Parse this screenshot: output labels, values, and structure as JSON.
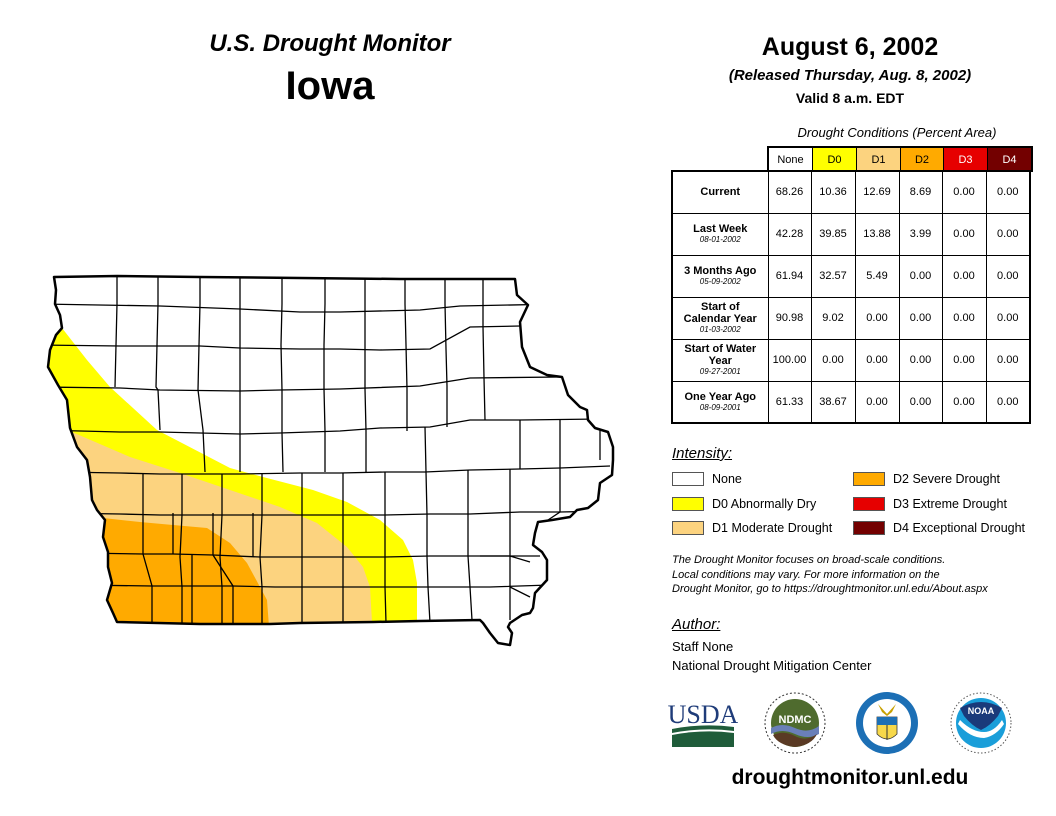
{
  "header": {
    "title": "U.S. Drought Monitor",
    "state": "Iowa",
    "date": "August 6, 2002",
    "released": "(Released Thursday, Aug. 8, 2002)",
    "valid": "Valid 8 a.m. EDT"
  },
  "table": {
    "caption": "Drought Conditions (Percent Area)",
    "columns": [
      {
        "label": "None",
        "color": "#ffffff",
        "text_color": "#000000"
      },
      {
        "label": "D0",
        "color": "#ffff00",
        "text_color": "#000000"
      },
      {
        "label": "D1",
        "color": "#fcd37f",
        "text_color": "#000000"
      },
      {
        "label": "D2",
        "color": "#ffaa00",
        "text_color": "#000000"
      },
      {
        "label": "D3",
        "color": "#e60000",
        "text_color": "#ffffff"
      },
      {
        "label": "D4",
        "color": "#730000",
        "text_color": "#ffffff"
      }
    ],
    "rows": [
      {
        "label": "Current",
        "date": "",
        "values": [
          "68.26",
          "10.36",
          "12.69",
          "8.69",
          "0.00",
          "0.00"
        ]
      },
      {
        "label": "Last Week",
        "date": "08-01-2002",
        "values": [
          "42.28",
          "39.85",
          "13.88",
          "3.99",
          "0.00",
          "0.00"
        ]
      },
      {
        "label": "3 Months Ago",
        "date": "05-09-2002",
        "values": [
          "61.94",
          "32.57",
          "5.49",
          "0.00",
          "0.00",
          "0.00"
        ]
      },
      {
        "label": "Start of Calendar Year",
        "date": "01-03-2002",
        "values": [
          "90.98",
          "9.02",
          "0.00",
          "0.00",
          "0.00",
          "0.00"
        ]
      },
      {
        "label": "Start of Water Year",
        "date": "09-27-2001",
        "values": [
          "100.00",
          "0.00",
          "0.00",
          "0.00",
          "0.00",
          "0.00"
        ]
      },
      {
        "label": "One Year Ago",
        "date": "08-09-2001",
        "values": [
          "61.33",
          "38.67",
          "0.00",
          "0.00",
          "0.00",
          "0.00"
        ]
      }
    ]
  },
  "legend": {
    "title": "Intensity:",
    "items": [
      {
        "label": "None",
        "color": "#ffffff"
      },
      {
        "label": "D0 Abnormally Dry",
        "color": "#ffff00"
      },
      {
        "label": "D1 Moderate Drought",
        "color": "#fcd37f"
      },
      {
        "label": "D2 Severe Drought",
        "color": "#ffaa00"
      },
      {
        "label": "D3 Extreme Drought",
        "color": "#e60000"
      },
      {
        "label": "D4 Exceptional Drought",
        "color": "#730000"
      }
    ]
  },
  "note": [
    "The Drought Monitor focuses on broad-scale conditions.",
    "Local conditions may vary. For more information on the",
    "Drought Monitor, go to https://droughtmonitor.unl.edu/About.aspx"
  ],
  "author": {
    "title": "Author:",
    "name": "Staff None",
    "org": "National Drought Mitigation Center"
  },
  "logos": {
    "usda": "USDA",
    "ndmc": "NDMC",
    "commerce": "Department of Commerce",
    "noaa": "NOAA"
  },
  "footer": {
    "url": "droughtmonitor.unl.edu"
  },
  "map": {
    "region": "Iowa",
    "categories_present": [
      "None",
      "D0",
      "D1",
      "D2"
    ]
  }
}
